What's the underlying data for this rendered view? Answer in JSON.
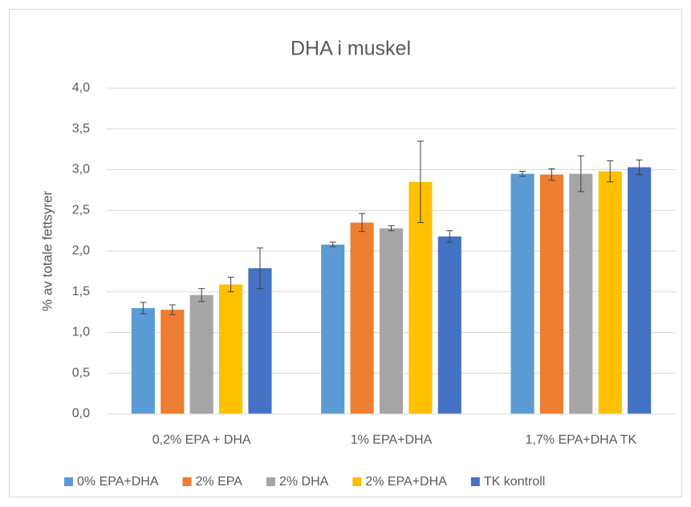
{
  "chart_data": {
    "type": "bar",
    "title": "DHA i muskel",
    "y_label": "% av totale fettsyrer",
    "categories": [
      "0,2% EPA + DHA",
      "1% EPA+DHA",
      "1,7% EPA+DHA TK"
    ],
    "series": [
      {
        "name": "0% EPA+DHA",
        "color": "#5b9bd5",
        "values": [
          1.3,
          2.08,
          2.95
        ],
        "errors": [
          0.07,
          0.03,
          0.03
        ]
      },
      {
        "name": "2% EPA",
        "color": "#ed7d31",
        "values": [
          1.28,
          2.35,
          2.94
        ],
        "errors": [
          0.06,
          0.11,
          0.07
        ]
      },
      {
        "name": "2% DHA",
        "color": "#a5a5a5",
        "values": [
          1.46,
          2.28,
          2.95
        ],
        "errors": [
          0.08,
          0.03,
          0.22
        ]
      },
      {
        "name": "2% EPA+DHA",
        "color": "#ffc000",
        "values": [
          1.59,
          2.85,
          2.98
        ],
        "errors": [
          0.09,
          0.5,
          0.13
        ]
      },
      {
        "name": "TK kontroll",
        "color": "#4472c4",
        "values": [
          1.79,
          2.18,
          3.03
        ],
        "errors": [
          0.25,
          0.07,
          0.09
        ]
      }
    ],
    "ylim": [
      0,
      4
    ],
    "yticks": [
      {
        "value": 0,
        "label": "0,0"
      },
      {
        "value": 0.5,
        "label": "0,5"
      },
      {
        "value": 1,
        "label": "1,0"
      },
      {
        "value": 1.5,
        "label": "1,5"
      },
      {
        "value": 2,
        "label": "2,0"
      },
      {
        "value": 2.5,
        "label": "2,5"
      },
      {
        "value": 3,
        "label": "3,0"
      },
      {
        "value": 3.5,
        "label": "3,5"
      },
      {
        "value": 4,
        "label": "4,0"
      }
    ],
    "grid": true,
    "legend": "bottom"
  }
}
